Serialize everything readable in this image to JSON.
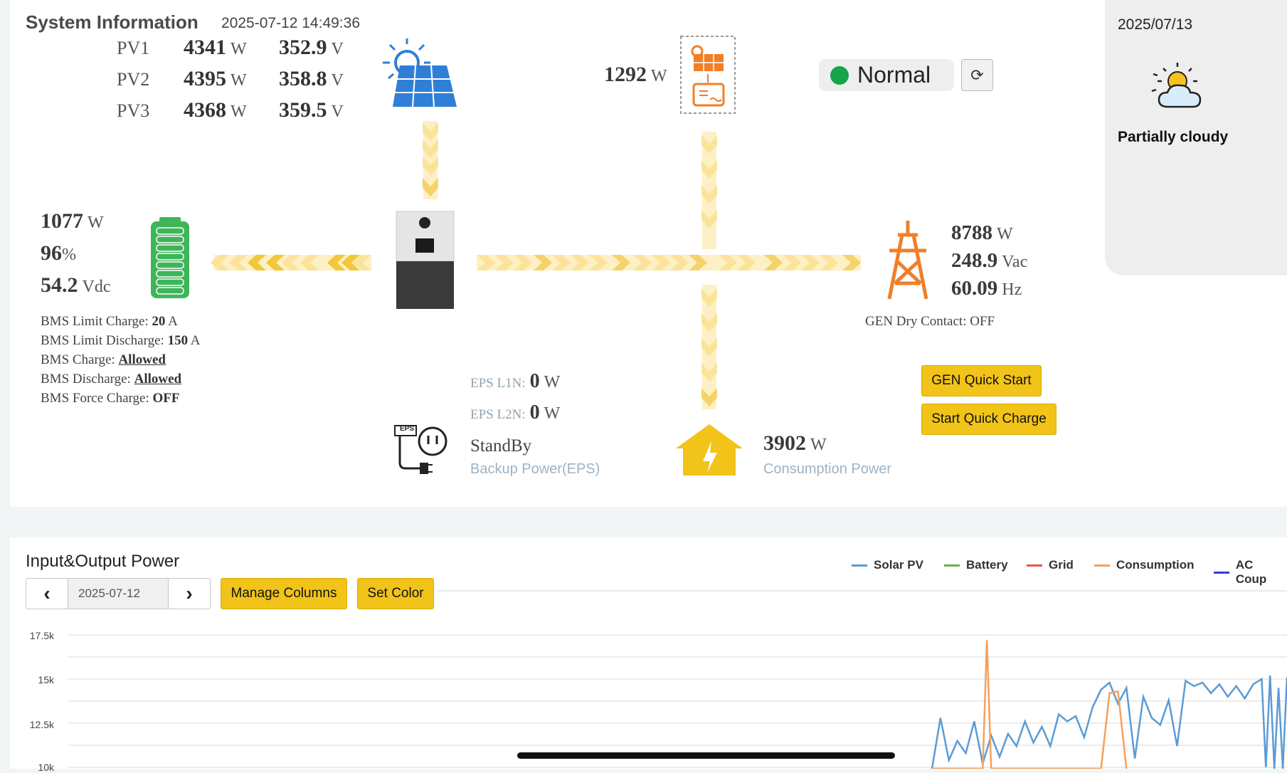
{
  "system": {
    "title": "System Information",
    "timestamp": "2025-07-12 14:49:36",
    "pv": [
      {
        "label": "PV1",
        "power": "4341",
        "power_unit": "W",
        "voltage": "352.9",
        "voltage_unit": "V"
      },
      {
        "label": "PV2",
        "power": "4395",
        "power_unit": "W",
        "voltage": "358.8",
        "voltage_unit": "V"
      },
      {
        "label": "PV3",
        "power": "4368",
        "power_unit": "W",
        "voltage": "359.5",
        "voltage_unit": "V"
      }
    ],
    "ac_coupled": {
      "power": "1292",
      "unit": "W"
    },
    "status": {
      "label": "Normal",
      "color": "#16a34a"
    },
    "battery": {
      "power": "1077",
      "power_unit": "W",
      "soc": "96",
      "soc_unit": "%",
      "voltage": "54.2",
      "voltage_unit": "Vdc",
      "bms": {
        "limit_charge_label": "BMS Limit Charge:",
        "limit_charge": "20",
        "limit_charge_unit": "A",
        "limit_discharge_label": "BMS Limit Discharge:",
        "limit_discharge": "150",
        "limit_discharge_unit": "A",
        "charge_label": "BMS Charge:",
        "charge": "Allowed",
        "discharge_label": "BMS Discharge:",
        "discharge": "Allowed",
        "force_charge_label": "BMS Force Charge:",
        "force_charge": "OFF"
      }
    },
    "grid": {
      "power": "8788",
      "power_unit": "W",
      "voltage": "248.9",
      "voltage_unit": "Vac",
      "frequency": "60.09",
      "frequency_unit": "Hz",
      "gen_dry_contact": "GEN Dry Contact: OFF"
    },
    "eps": {
      "l1n_label": "EPS L1N:",
      "l1n": "0",
      "l1n_unit": "W",
      "l2n_label": "EPS L2N:",
      "l2n": "0",
      "l2n_unit": "W",
      "state": "StandBy",
      "caption": "Backup Power(EPS)",
      "badge": "EPS"
    },
    "consumption": {
      "power": "3902",
      "unit": "W",
      "caption": "Consumption Power"
    },
    "buttons": {
      "gen_quick_start": "GEN Quick Start",
      "start_quick_charge": "Start Quick Charge"
    }
  },
  "weather": {
    "date": "2025/07/13",
    "condition": "Partially cloudy",
    "icon": "partly-cloudy-icon"
  },
  "chart_section": {
    "title": "Input&Output Power",
    "date": "2025-07-12",
    "manage_columns": "Manage Columns",
    "set_color": "Set Color"
  },
  "chart_data": {
    "type": "line",
    "title": "Input&Output Power",
    "ylim": [
      10000,
      17500
    ],
    "yticks": [
      "17.5k",
      "15k",
      "12.5k",
      "10k"
    ],
    "grid": true,
    "legend_placement": "top-right",
    "series": [
      {
        "name": "Solar PV",
        "color": "#5b9bd5",
        "points": [
          [
            0.0,
            9700
          ],
          [
            0.01,
            12800
          ],
          [
            0.02,
            10400
          ],
          [
            0.03,
            11500
          ],
          [
            0.04,
            10800
          ],
          [
            0.05,
            12600
          ],
          [
            0.06,
            10200
          ],
          [
            0.07,
            11800
          ],
          [
            0.08,
            10600
          ],
          [
            0.09,
            11900
          ],
          [
            0.1,
            11200
          ],
          [
            0.11,
            12600
          ],
          [
            0.12,
            11400
          ],
          [
            0.13,
            12300
          ],
          [
            0.14,
            11200
          ],
          [
            0.15,
            13000
          ],
          [
            0.16,
            12600
          ],
          [
            0.17,
            12900
          ],
          [
            0.18,
            11700
          ],
          [
            0.19,
            13400
          ],
          [
            0.2,
            14400
          ],
          [
            0.21,
            14800
          ],
          [
            0.22,
            13600
          ],
          [
            0.23,
            14500
          ],
          [
            0.24,
            10500
          ],
          [
            0.25,
            14000
          ],
          [
            0.26,
            12800
          ],
          [
            0.27,
            12400
          ],
          [
            0.28,
            13800
          ],
          [
            0.29,
            11200
          ],
          [
            0.3,
            14900
          ],
          [
            0.31,
            14600
          ],
          [
            0.32,
            14800
          ],
          [
            0.33,
            14200
          ],
          [
            0.34,
            14700
          ],
          [
            0.35,
            14000
          ],
          [
            0.36,
            14600
          ],
          [
            0.37,
            13900
          ],
          [
            0.38,
            14700
          ],
          [
            0.39,
            15000
          ],
          [
            0.395,
            10000
          ],
          [
            0.4,
            15200
          ],
          [
            0.405,
            9800
          ],
          [
            0.41,
            14500
          ],
          [
            0.415,
            9900
          ],
          [
            0.42,
            15100
          ]
        ]
      },
      {
        "name": "Battery",
        "color": "#70ad47",
        "points": []
      },
      {
        "name": "Grid",
        "color": "#ef5350",
        "points": []
      },
      {
        "name": "Consumption",
        "color": "#f4a15d",
        "points": [
          [
            0.0,
            9600
          ],
          [
            0.04,
            9700
          ],
          [
            0.06,
            9700
          ],
          [
            0.065,
            17200
          ],
          [
            0.07,
            9800
          ],
          [
            0.08,
            9700
          ],
          [
            0.2,
            9700
          ],
          [
            0.21,
            14200
          ],
          [
            0.22,
            14300
          ],
          [
            0.23,
            9800
          ]
        ]
      },
      {
        "name": "AC Coup",
        "color": "#3b3bd6",
        "points": []
      }
    ]
  }
}
